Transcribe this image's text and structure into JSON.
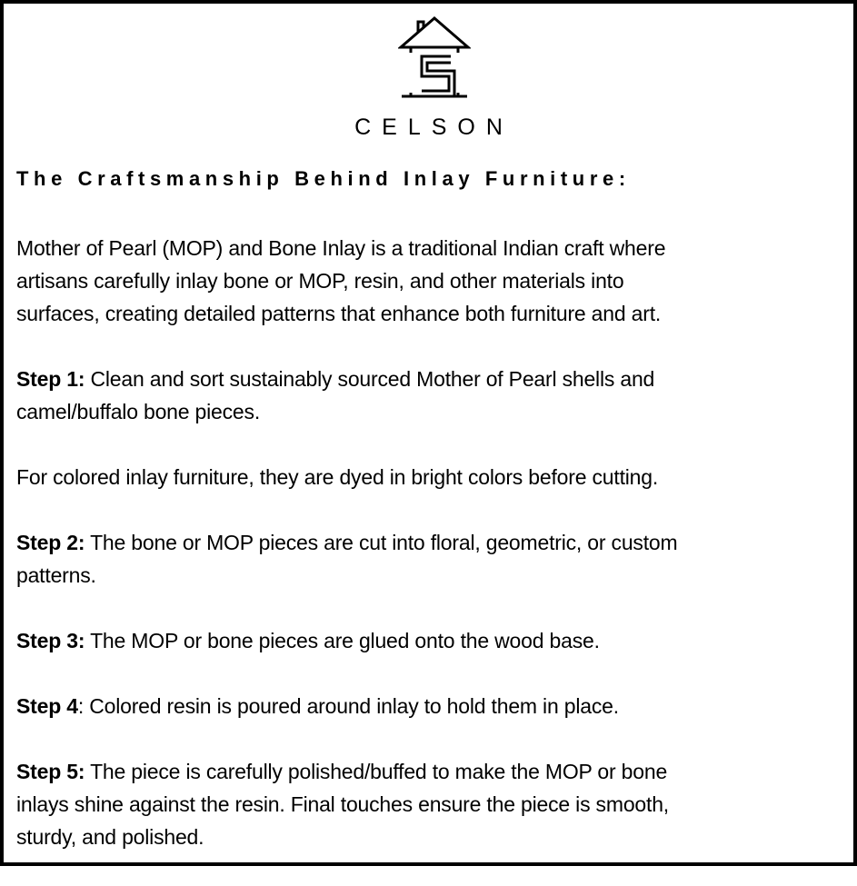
{
  "brand": {
    "name": "CELSON",
    "logo_icon": "house-s-logo-icon"
  },
  "heading": "The Craftsmanship Behind Inlay Furniture:",
  "intro": {
    "lines": [
      "Mother of Pearl (MOP) and Bone Inlay is a traditional Indian craft where",
      "artisans carefully inlay bone or MOP, resin, and other materials into",
      "surfaces, creating detailed patterns that enhance both furniture and art."
    ]
  },
  "step1": {
    "label": "Step 1:",
    "lines": [
      " Clean and sort sustainably sourced Mother of Pearl shells and",
      "camel/buffalo bone pieces."
    ]
  },
  "note": {
    "lines": [
      "For colored inlay furniture, they are dyed in bright colors before cutting."
    ]
  },
  "step2": {
    "label": "Step 2:",
    "lines": [
      " The bone or MOP pieces are cut into floral, geometric, or custom",
      "patterns."
    ]
  },
  "step3": {
    "label": "Step 3:",
    "lines": [
      " The MOP or bone pieces are glued onto the wood base."
    ]
  },
  "step4": {
    "label": "Step 4",
    "lines": [
      ": Colored resin is poured around inlay to hold them in place."
    ]
  },
  "step5": {
    "label": "Step 5:",
    "lines": [
      " The piece is carefully polished/buffed to make the MOP or bone",
      "inlays shine against the resin. Final touches ensure the piece is smooth,",
      "sturdy, and polished."
    ]
  }
}
